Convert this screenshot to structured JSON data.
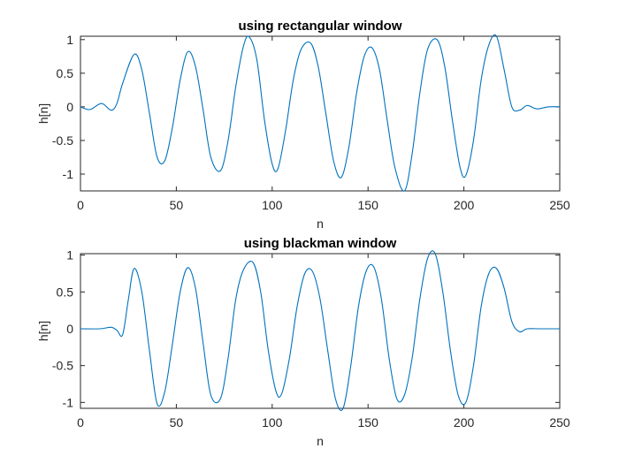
{
  "chart_data": [
    {
      "type": "line",
      "title": "using rectangular window",
      "xlabel": "n",
      "ylabel": "h[n]",
      "xlim": [
        0,
        250
      ],
      "ylim": [
        -1.25,
        1.05
      ],
      "xticks": [
        0,
        50,
        100,
        150,
        200,
        250
      ],
      "yticks": [
        -1,
        -0.5,
        0,
        0.5,
        1
      ],
      "xtick_labels": [
        "0",
        "50",
        "100",
        "150",
        "200",
        "250"
      ],
      "ytick_labels": [
        "-1",
        "-0.5",
        "0",
        "0.5",
        "1"
      ],
      "grid": false,
      "color": "#0072BD",
      "series": [
        {
          "x": [
            0,
            5,
            11,
            16,
            19,
            22,
            28,
            32,
            36,
            40,
            44,
            48,
            52,
            56,
            60,
            64,
            68,
            73,
            77,
            81,
            85,
            88,
            92,
            96,
            100,
            103,
            107,
            111,
            115,
            120,
            124,
            128,
            132,
            136,
            140,
            144,
            148,
            152,
            156,
            160,
            164,
            169,
            173,
            177,
            181,
            186,
            190,
            194,
            198,
            201,
            205,
            209,
            213,
            217,
            221,
            225,
            229,
            233,
            238,
            244,
            250
          ],
          "y": [
            0,
            -0.04,
            0.05,
            -0.05,
            0.05,
            0.35,
            0.78,
            0.55,
            -0.1,
            -0.75,
            -0.8,
            -0.3,
            0.4,
            0.82,
            0.6,
            -0.05,
            -0.75,
            -0.95,
            -0.5,
            0.3,
            0.9,
            1.04,
            0.7,
            -0.2,
            -0.85,
            -0.92,
            -0.35,
            0.4,
            0.85,
            0.95,
            0.6,
            -0.1,
            -0.8,
            -1.05,
            -0.6,
            0.2,
            0.75,
            0.88,
            0.55,
            -0.2,
            -0.9,
            -1.25,
            -0.7,
            0.2,
            0.85,
            1.0,
            0.6,
            -0.2,
            -0.9,
            -1.02,
            -0.5,
            0.4,
            0.92,
            1.05,
            0.55,
            0.0,
            -0.05,
            0.02,
            -0.03,
            0.0,
            0.0
          ]
        }
      ]
    },
    {
      "type": "line",
      "title": "using blackman window",
      "xlabel": "n",
      "ylabel": "h[n]",
      "xlim": [
        0,
        250
      ],
      "ylim": [
        -1.08,
        1.02
      ],
      "xticks": [
        0,
        50,
        100,
        150,
        200,
        250
      ],
      "yticks": [
        -1,
        -0.5,
        0,
        0.5,
        1
      ],
      "xtick_labels": [
        "0",
        "50",
        "100",
        "150",
        "200",
        "250"
      ],
      "ytick_labels": [
        "-1",
        "-0.5",
        "0",
        "0.5",
        "1"
      ],
      "grid": false,
      "color": "#0072BD",
      "series": [
        {
          "x": [
            0,
            10,
            16,
            19,
            22,
            25,
            28,
            32,
            36,
            40,
            44,
            48,
            52,
            56,
            60,
            64,
            68,
            73,
            77,
            81,
            85,
            90,
            94,
            98,
            102,
            105,
            109,
            113,
            117,
            121,
            125,
            129,
            133,
            137,
            141,
            145,
            149,
            153,
            157,
            161,
            165,
            169,
            173,
            177,
            181,
            185,
            189,
            193,
            197,
            201,
            205,
            209,
            213,
            217,
            221,
            225,
            229,
            233,
            240,
            250
          ],
          "y": [
            0,
            0.0,
            0.02,
            -0.02,
            -0.08,
            0.4,
            0.82,
            0.5,
            -0.3,
            -1.02,
            -0.85,
            -0.2,
            0.5,
            0.83,
            0.55,
            -0.2,
            -0.9,
            -0.95,
            -0.4,
            0.4,
            0.8,
            0.9,
            0.5,
            -0.3,
            -0.85,
            -0.88,
            -0.4,
            0.3,
            0.75,
            0.78,
            0.4,
            -0.3,
            -0.95,
            -1.08,
            -0.5,
            0.3,
            0.78,
            0.84,
            0.4,
            -0.4,
            -0.95,
            -0.9,
            -0.4,
            0.4,
            0.95,
            1.02,
            0.5,
            -0.3,
            -0.9,
            -1.0,
            -0.5,
            0.3,
            0.75,
            0.82,
            0.55,
            0.1,
            -0.04,
            0.0,
            0.0,
            0.0
          ]
        }
      ]
    }
  ]
}
